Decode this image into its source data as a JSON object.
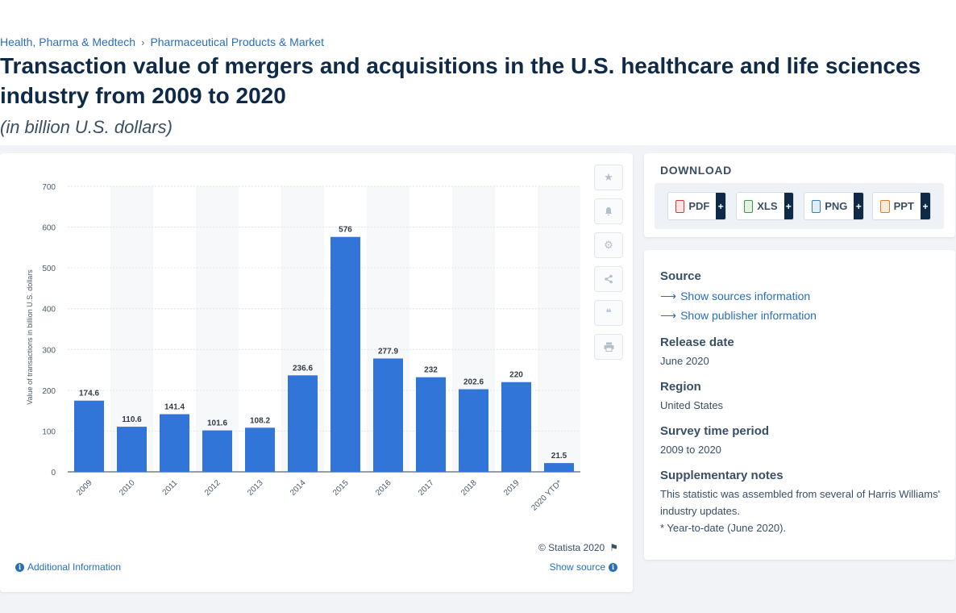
{
  "breadcrumb": {
    "item1": "Health, Pharma & Medtech",
    "sep": "›",
    "item2": "Pharmaceutical Products & Market"
  },
  "title": "Transaction value of mergers and acquisitions in the U.S. healthcare and life sciences industry from 2009 to 2020",
  "subtitle": "(in billion U.S. dollars)",
  "chart_data": {
    "type": "bar",
    "categories": [
      "2009",
      "2010",
      "2011",
      "2012",
      "2013",
      "2014",
      "2015",
      "2016",
      "2017",
      "2018",
      "2019",
      "2020 YTD*"
    ],
    "values": [
      174.6,
      110.6,
      141.4,
      101.6,
      108.2,
      236.6,
      576,
      277.9,
      232,
      202.6,
      220,
      21.5
    ],
    "value_labels": [
      "174.6",
      "110.6",
      "141.4",
      "101.6",
      "108.2",
      "236.6",
      "576",
      "277.9",
      "232",
      "202.6",
      "220",
      "21.5"
    ],
    "ylabel": "Value of transactions in billion U.S. dollars",
    "xlabel": "",
    "ylim": [
      0,
      700
    ],
    "yticks": [
      0,
      100,
      200,
      300,
      400,
      500,
      600,
      700
    ],
    "grid": true,
    "bar_color": "#3275d9"
  },
  "chart_footer": {
    "copyright": "© Statista 2020",
    "additional_info": "Additional Information",
    "show_source": "Show source"
  },
  "tools": [
    "star-icon",
    "bell-icon",
    "gear-icon",
    "share-icon",
    "quote-icon",
    "print-icon"
  ],
  "download": {
    "title": "DOWNLOAD",
    "buttons": [
      {
        "label": "PDF",
        "plus": "+",
        "color": "#d9373b"
      },
      {
        "label": "XLS",
        "plus": "+",
        "color": "#3c9a44"
      },
      {
        "label": "PNG",
        "plus": "+",
        "color": "#2f7fc3"
      },
      {
        "label": "PPT",
        "plus": "+",
        "color": "#e87a2b"
      }
    ]
  },
  "info": {
    "source_heading": "Source",
    "show_sources": "Show sources information",
    "show_publisher": "Show publisher information",
    "release_heading": "Release date",
    "release_value": "June 2020",
    "region_heading": "Region",
    "region_value": "United States",
    "survey_heading": "Survey time period",
    "survey_value": "2009 to 2020",
    "notes_heading": "Supplementary notes",
    "notes_line1": "This statistic was assembled from several of Harris Williams' industry updates.",
    "notes_line2": "* Year-to-date (June 2020)."
  }
}
